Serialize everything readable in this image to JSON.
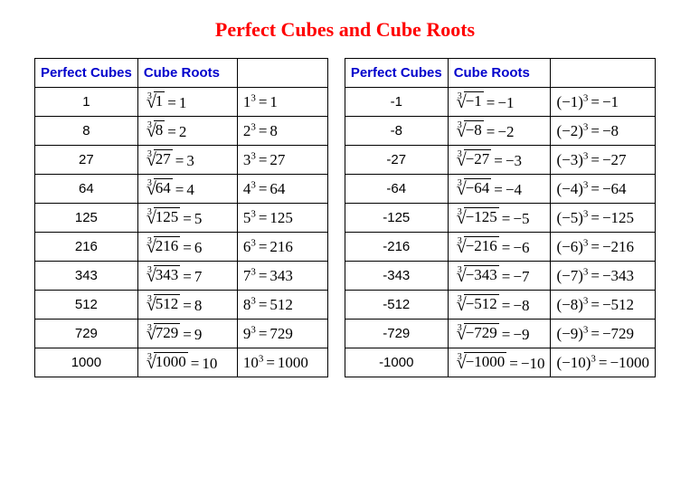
{
  "title_text": "Perfect Cubes and Cube Roots",
  "title_color": "#ff0000",
  "header_color": "#0000cc",
  "columns": {
    "perfect_cubes": "Perfect Cubes",
    "cube_roots": "Cube Roots",
    "power_form": ""
  },
  "positive": [
    {
      "cube": "1",
      "radicand": "1",
      "root": "1",
      "base": "1",
      "result": "1"
    },
    {
      "cube": "8",
      "radicand": "8",
      "root": "2",
      "base": "2",
      "result": "8"
    },
    {
      "cube": "27",
      "radicand": "27",
      "root": "3",
      "base": "3",
      "result": "27"
    },
    {
      "cube": "64",
      "radicand": "64",
      "root": "4",
      "base": "4",
      "result": "64"
    },
    {
      "cube": "125",
      "radicand": "125",
      "root": "5",
      "base": "5",
      "result": "125"
    },
    {
      "cube": "216",
      "radicand": "216",
      "root": "6",
      "base": "6",
      "result": "216"
    },
    {
      "cube": "343",
      "radicand": "343",
      "root": "7",
      "base": "7",
      "result": "343"
    },
    {
      "cube": "512",
      "radicand": "512",
      "root": "8",
      "base": "8",
      "result": "512"
    },
    {
      "cube": "729",
      "radicand": "729",
      "root": "9",
      "base": "9",
      "result": "729"
    },
    {
      "cube": "1000",
      "radicand": "1000",
      "root": "10",
      "base": "10",
      "result": "1000"
    }
  ],
  "negative": [
    {
      "cube": "-1",
      "radicand": "−1",
      "root": "−1",
      "base": "(−1)",
      "result": "−1"
    },
    {
      "cube": "-8",
      "radicand": "−8",
      "root": "−2",
      "base": "(−2)",
      "result": "−8"
    },
    {
      "cube": "-27",
      "radicand": "−27",
      "root": "−3",
      "base": "(−3)",
      "result": "−27"
    },
    {
      "cube": "-64",
      "radicand": "−64",
      "root": "−4",
      "base": "(−4)",
      "result": "−64"
    },
    {
      "cube": "-125",
      "radicand": "−125",
      "root": "−5",
      "base": "(−5)",
      "result": "−125"
    },
    {
      "cube": "-216",
      "radicand": "−216",
      "root": "−6",
      "base": "(−6)",
      "result": "−216"
    },
    {
      "cube": "-343",
      "radicand": "−343",
      "root": "−7",
      "base": "(−7)",
      "result": "−343"
    },
    {
      "cube": "-512",
      "radicand": "−512",
      "root": "−8",
      "base": "(−8)",
      "result": "−512"
    },
    {
      "cube": "-729",
      "radicand": "−729",
      "root": "−9",
      "base": "(−9)",
      "result": "−729"
    },
    {
      "cube": "-1000",
      "radicand": "−1000",
      "root": "−10",
      "base": "(−10)",
      "result": "−1000"
    }
  ]
}
